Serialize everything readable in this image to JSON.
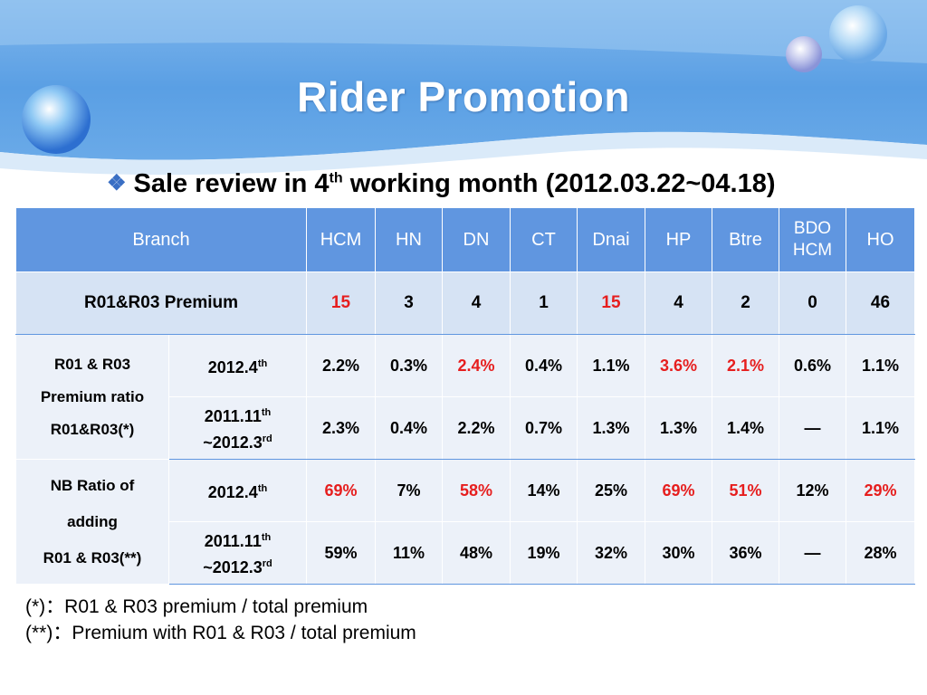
{
  "slide": {
    "title": "Rider Promotion",
    "subtitle_prefix": "Sale review in 4",
    "subtitle_sup": "th",
    "subtitle_suffix": " working month (2012.03.22~04.18)",
    "colors": {
      "header_blue": "#5aa0e6",
      "table_header": "#6096e0",
      "highlight_red": "#e61e1e"
    }
  },
  "table": {
    "header": {
      "branch": "Branch",
      "columns": [
        "HCM",
        "HN",
        "DN",
        "CT",
        "Dnai",
        "HP",
        "Btre",
        "BDO HCM",
        "HO"
      ]
    },
    "premium_row": {
      "label": "R01&R03 Premium",
      "values": [
        "15",
        "3",
        "4",
        "1",
        "15",
        "4",
        "2",
        "0",
        "46"
      ]
    },
    "group1": {
      "label_line1": "R01 & R03",
      "label_line2": "Premium ratio",
      "label_line3": "R01&R03(*)",
      "row1": {
        "period": "2012.4",
        "period_sup": "th",
        "values": [
          "2.2%",
          "0.3%",
          "2.4%",
          "0.4%",
          "1.1%",
          "3.6%",
          "2.1%",
          "0.6%",
          "1.1%"
        ]
      },
      "row2": {
        "period_line1": "2011.11",
        "period_line1_sup": "th",
        "period_line2": "~2012.3",
        "period_line2_sup": "rd",
        "values": [
          "2.3%",
          "0.4%",
          "2.2%",
          "0.7%",
          "1.3%",
          "1.3%",
          "1.4%",
          "—",
          "1.1%"
        ]
      }
    },
    "group2": {
      "label_line1": "NB Ratio of",
      "label_line2": "adding",
      "label_line3": "R01 & R03(**)",
      "row1": {
        "period": "2012.4",
        "period_sup": "th",
        "values": [
          "69%",
          "7%",
          "58%",
          "14%",
          "25%",
          "69%",
          "51%",
          "12%",
          "29%"
        ]
      },
      "row2": {
        "period_line1": "2011.11",
        "period_line1_sup": "th",
        "period_line2": "~2012.3",
        "period_line2_sup": "rd",
        "values": [
          "59%",
          "11%",
          "48%",
          "19%",
          "32%",
          "30%",
          "36%",
          "—",
          "28%"
        ]
      }
    }
  },
  "notes": {
    "note1": "(*)：R01 & R03 premium / total premium",
    "note2": "(**)：Premium with R01 & R03 / total premium"
  }
}
